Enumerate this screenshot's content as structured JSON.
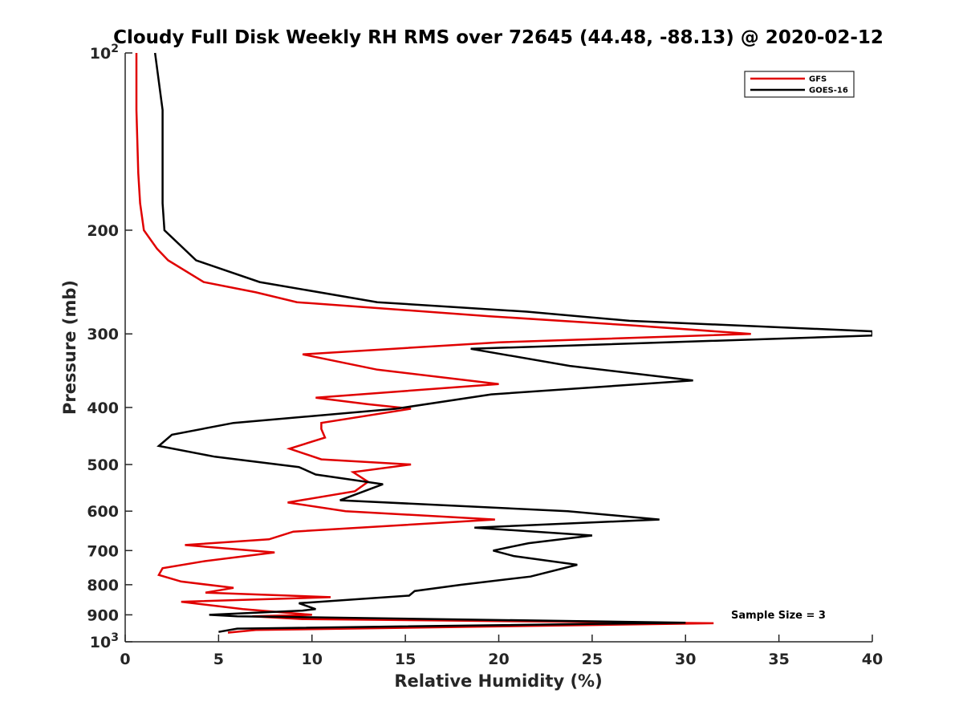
{
  "chart_data": {
    "type": "line",
    "title": "Cloudy Full Disk Weekly RH RMS over 72645 (44.48, -88.13) @ 2020-02-12",
    "xlabel": "Relative Humidity (%)",
    "ylabel": "Pressure (mb)",
    "xlim": [
      0,
      40
    ],
    "ylim": [
      100,
      1000
    ],
    "y_scale": "log",
    "y_reversed": true,
    "grid": false,
    "legend_position": "top-right",
    "x_ticks": [
      "0",
      "5",
      "10",
      "15",
      "20",
      "25",
      "30",
      "35",
      "40"
    ],
    "y_ticks": [
      {
        "value": 100,
        "base": "10",
        "exp": "2"
      },
      {
        "value": 200,
        "label": "200"
      },
      {
        "value": 300,
        "label": "300"
      },
      {
        "value": 400,
        "label": "400"
      },
      {
        "value": 500,
        "label": "500"
      },
      {
        "value": 600,
        "label": "600"
      },
      {
        "value": 700,
        "label": "700"
      },
      {
        "value": 800,
        "label": "800"
      },
      {
        "value": 900,
        "label": "900"
      },
      {
        "value": 1000,
        "base": "10",
        "exp": "3"
      }
    ],
    "annotation": "Sample Size = 3",
    "series": [
      {
        "name": "GFS",
        "color": "#e00000",
        "points": [
          [
            0.6,
            100
          ],
          [
            0.6,
            125
          ],
          [
            0.7,
            160
          ],
          [
            0.8,
            180
          ],
          [
            1.0,
            200
          ],
          [
            1.7,
            215
          ],
          [
            2.3,
            225
          ],
          [
            4.2,
            245
          ],
          [
            7.0,
            255
          ],
          [
            9.2,
            265
          ],
          [
            19.5,
            280
          ],
          [
            27.0,
            290
          ],
          [
            33.5,
            300
          ],
          [
            20.0,
            310
          ],
          [
            9.5,
            325
          ],
          [
            13.5,
            345
          ],
          [
            20.0,
            365
          ],
          [
            10.2,
            385
          ],
          [
            13.0,
            395
          ],
          [
            15.3,
            402
          ],
          [
            10.5,
            425
          ],
          [
            10.5,
            435
          ],
          [
            10.7,
            450
          ],
          [
            8.8,
            470
          ],
          [
            10.5,
            490
          ],
          [
            15.3,
            500
          ],
          [
            12.2,
            515
          ],
          [
            13.0,
            535
          ],
          [
            12.3,
            555
          ],
          [
            8.7,
            580
          ],
          [
            11.8,
            600
          ],
          [
            19.8,
            620
          ],
          [
            9.0,
            650
          ],
          [
            7.7,
            670
          ],
          [
            3.2,
            685
          ],
          [
            8.0,
            705
          ],
          [
            4.2,
            730
          ],
          [
            2.0,
            750
          ],
          [
            1.8,
            770
          ],
          [
            3.0,
            790
          ],
          [
            5.8,
            810
          ],
          [
            4.3,
            825
          ],
          [
            11.0,
            840
          ],
          [
            3.0,
            855
          ],
          [
            6.3,
            880
          ],
          [
            10.0,
            900
          ],
          [
            6.8,
            905
          ],
          [
            9.5,
            915
          ],
          [
            31.5,
            930
          ],
          [
            7.0,
            955
          ],
          [
            5.5,
            965
          ]
        ]
      },
      {
        "name": "GOES-16",
        "color": "#000000",
        "points": [
          [
            1.6,
            100
          ],
          [
            2.0,
            125
          ],
          [
            2.0,
            160
          ],
          [
            2.0,
            180
          ],
          [
            2.1,
            200
          ],
          [
            3.8,
            225
          ],
          [
            7.2,
            245
          ],
          [
            13.5,
            265
          ],
          [
            21.5,
            275
          ],
          [
            27.0,
            285
          ],
          [
            40.0,
            297
          ],
          [
            40.0,
            302
          ],
          [
            18.5,
            318
          ],
          [
            23.8,
            340
          ],
          [
            30.4,
            360
          ],
          [
            19.6,
            380
          ],
          [
            14.5,
            402
          ],
          [
            5.8,
            425
          ],
          [
            2.5,
            445
          ],
          [
            1.8,
            465
          ],
          [
            4.8,
            485
          ],
          [
            9.3,
            505
          ],
          [
            10.2,
            520
          ],
          [
            13.8,
            540
          ],
          [
            12.8,
            555
          ],
          [
            11.5,
            575
          ],
          [
            23.7,
            600
          ],
          [
            28.6,
            620
          ],
          [
            18.7,
            640
          ],
          [
            25.0,
            660
          ],
          [
            21.6,
            680
          ],
          [
            19.7,
            700
          ],
          [
            20.8,
            715
          ],
          [
            24.2,
            740
          ],
          [
            21.7,
            775
          ],
          [
            18.0,
            800
          ],
          [
            15.5,
            820
          ],
          [
            15.2,
            835
          ],
          [
            9.3,
            860
          ],
          [
            10.2,
            880
          ],
          [
            9.5,
            885
          ],
          [
            4.5,
            900
          ],
          [
            6.0,
            905
          ],
          [
            30.0,
            928
          ],
          [
            6.0,
            950
          ],
          [
            5.0,
            962
          ]
        ]
      }
    ]
  }
}
